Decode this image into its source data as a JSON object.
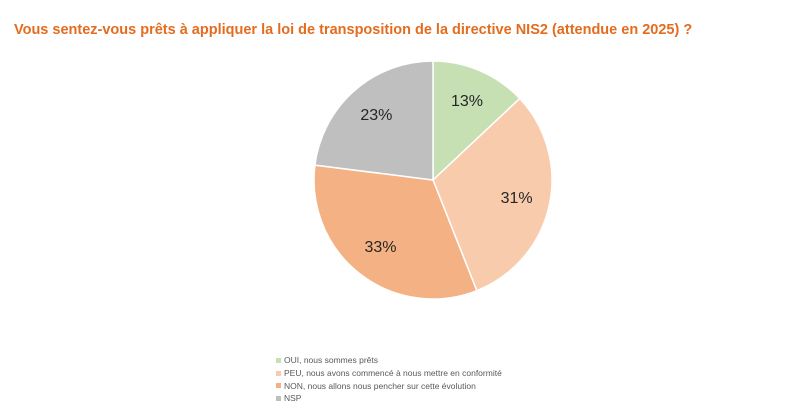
{
  "chart_data": {
    "type": "pie",
    "title": "Vous sentez-vous prêts à appliquer la loi de transposition de la directive NIS2 (attendue en 2025) ?",
    "slices": [
      {
        "label": "OUI, nous sommes prêts",
        "value": 13,
        "display": "13%",
        "color": "#c6e0b4"
      },
      {
        "label": "PEU, nous avons commencé à nous mettre en conformité",
        "value": 31,
        "display": "31%",
        "color": "#f8cbad"
      },
      {
        "label": "NON, nous allons nous pencher sur cette évolution",
        "value": 33,
        "display": "33%",
        "color": "#f4b183"
      },
      {
        "label": "NSP",
        "value": 23,
        "display": "23%",
        "color": "#bfbfbf"
      }
    ],
    "start_angle_deg": 0,
    "direction": "clockwise",
    "legend_position": "bottom"
  }
}
